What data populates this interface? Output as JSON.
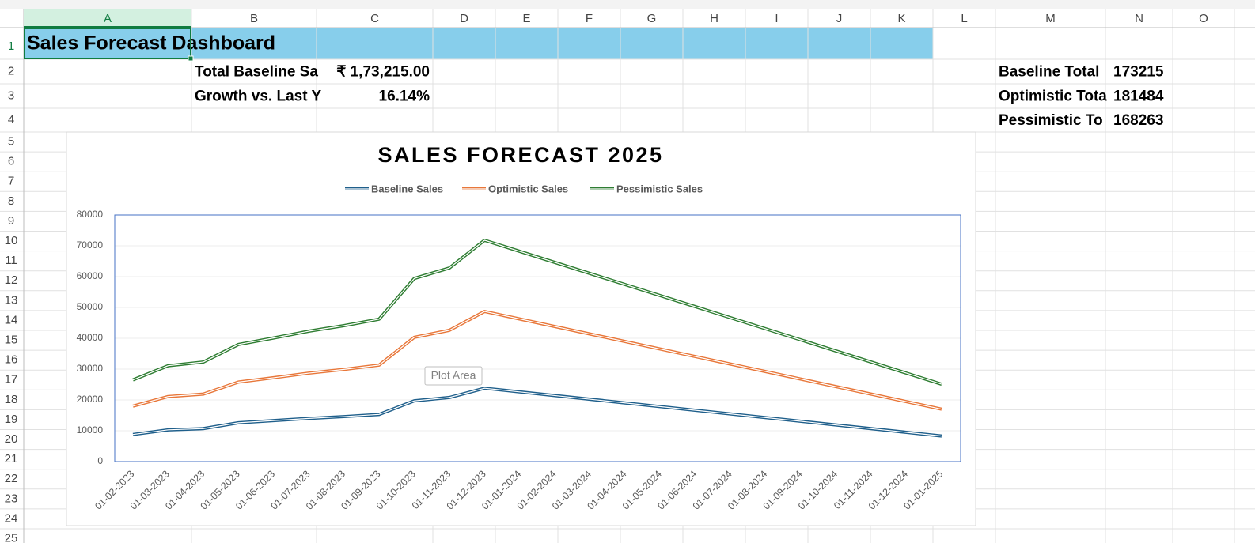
{
  "column_headers": [
    "A",
    "B",
    "C",
    "D",
    "E",
    "F",
    "G",
    "H",
    "I",
    "J",
    "K",
    "L",
    "M",
    "N",
    "O"
  ],
  "row_headers": [
    1,
    2,
    3,
    4,
    5,
    6,
    7,
    8,
    9,
    10,
    11,
    12,
    13,
    14,
    15,
    16,
    17,
    18,
    19,
    20,
    21,
    22,
    23,
    24,
    25
  ],
  "cells": {
    "A1": "Sales Forecast Dashboard",
    "B2": "Total Baseline Sa",
    "C2": "₹ 1,73,215.00",
    "B3": "Growth vs. Last Y",
    "C3": "16.14%",
    "M2": "Baseline Total",
    "N2": 173215,
    "M3": "Optimistic Tota",
    "N3": 181484,
    "M4": "Pessimistic To",
    "N4": 168263
  },
  "tooltip": "Plot Area",
  "chart_data": {
    "type": "line",
    "stacked": true,
    "title": "SALES FORECAST 2025",
    "legend": "top",
    "grid": true,
    "x": [
      "01-02-2023",
      "01-03-2023",
      "01-04-2023",
      "01-05-2023",
      "01-06-2023",
      "01-07-2023",
      "01-08-2023",
      "01-09-2023",
      "01-10-2023",
      "01-11-2023",
      "01-12-2023",
      "01-01-2025"
    ],
    "xlim": [
      "01-02-2023",
      "01-01-2025"
    ],
    "xticks": [
      "01-02-2023",
      "01-03-2023",
      "01-04-2023",
      "01-05-2023",
      "01-06-2023",
      "01-07-2023",
      "01-08-2023",
      "01-09-2023",
      "01-10-2023",
      "01-11-2023",
      "01-12-2023",
      "01-01-2024",
      "01-02-2024",
      "01-03-2024",
      "01-04-2024",
      "01-05-2024",
      "01-06-2024",
      "01-07-2024",
      "01-08-2024",
      "01-09-2024",
      "01-10-2024",
      "01-11-2024",
      "01-12-2024",
      "01-01-2025"
    ],
    "ylim": [
      0,
      80000
    ],
    "yticks": [
      0,
      10000,
      20000,
      30000,
      40000,
      50000,
      60000,
      70000,
      80000
    ],
    "series": [
      {
        "name": "Baseline Sales",
        "color": "#1f5f8b",
        "values": [
          8800,
          10300,
          10700,
          12600,
          13300,
          14000,
          14600,
          15300,
          19700,
          20800,
          23800,
          8300
        ]
      },
      {
        "name": "Optimistic Sales",
        "color": "#e8773a",
        "values": [
          9200,
          10800,
          11200,
          13200,
          13900,
          14700,
          15300,
          16000,
          20600,
          21800,
          24900,
          8700
        ]
      },
      {
        "name": "Pessimistic Sales",
        "color": "#2e7d32",
        "values": [
          8500,
          10000,
          10400,
          12200,
          12900,
          13600,
          14200,
          14900,
          19100,
          20200,
          23100,
          8100
        ]
      }
    ]
  }
}
